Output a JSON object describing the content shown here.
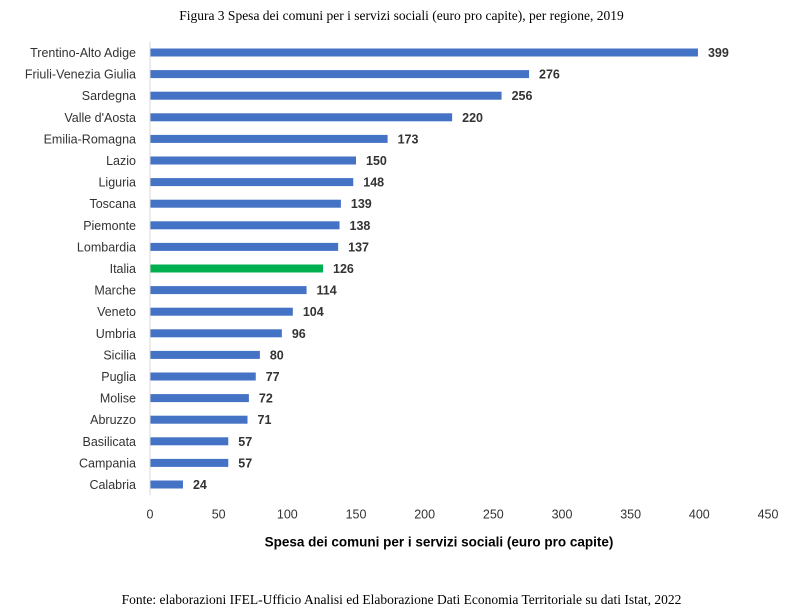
{
  "figure": {
    "title": "Figura 3 Spesa dei comuni per i servizi sociali (euro pro capite), per regione, 2019",
    "source": "Fonte: elaborazioni IFEL-Ufficio Analisi ed Elaborazione Dati Economia Territoriale su dati Istat, 2022"
  },
  "chart_data": {
    "type": "bar",
    "orientation": "horizontal",
    "categories": [
      "Trentino-Alto Adige",
      "Friuli-Venezia Giulia",
      "Sardegna",
      "Valle d'Aosta",
      "Emilia-Romagna",
      "Lazio",
      "Liguria",
      "Toscana",
      "Piemonte",
      "Lombardia",
      "Italia",
      "Marche",
      "Veneto",
      "Umbria",
      "Sicilia",
      "Puglia",
      "Molise",
      "Abruzzo",
      "Basilicata",
      "Campania",
      "Calabria"
    ],
    "values": [
      399,
      276,
      256,
      220,
      173,
      150,
      148,
      139,
      138,
      137,
      126,
      114,
      104,
      96,
      80,
      77,
      72,
      71,
      57,
      57,
      24
    ],
    "xlabel": "Spesa dei comuni per i servizi sociali (euro pro capite)",
    "ylabel": "",
    "xlim": [
      0,
      450
    ],
    "xticks": [
      0,
      50,
      100,
      150,
      200,
      250,
      300,
      350,
      400,
      450
    ],
    "highlight_category": "Italia",
    "colors": {
      "bar": "#4472C4",
      "highlight": "#00B050",
      "axis": "#d9d9d9"
    },
    "grid": false,
    "legend": "none"
  }
}
